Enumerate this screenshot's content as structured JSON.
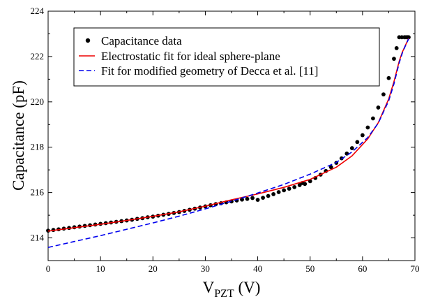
{
  "chart_data": {
    "type": "scatter",
    "xlabel": {
      "main": "V",
      "sub": "PZT",
      "unit": " (V)"
    },
    "ylabel": "Capacitance (pF)",
    "xlim": [
      0,
      70
    ],
    "ylim": [
      213,
      224
    ],
    "xticks": [
      0,
      10,
      20,
      30,
      40,
      50,
      60,
      70
    ],
    "yticks": [
      214,
      216,
      218,
      220,
      222,
      224
    ],
    "grid": false,
    "legend_position": "top-left",
    "series": [
      {
        "name": "Capacitance data",
        "kind": "points",
        "color": "#000000",
        "x": [
          0,
          1,
          2,
          3,
          4,
          5,
          6,
          7,
          8,
          9,
          10,
          11,
          12,
          13,
          14,
          15,
          16,
          17,
          18,
          19,
          20,
          21,
          22,
          23,
          24,
          25,
          26,
          27,
          28,
          29,
          30,
          31,
          32,
          33,
          34,
          35,
          36,
          37,
          38,
          39,
          40,
          41,
          42,
          43,
          44,
          45,
          46,
          47,
          48,
          48.5,
          49,
          50,
          51,
          52,
          53,
          54,
          55,
          56,
          57,
          58,
          59,
          60,
          61,
          62,
          63,
          64,
          65,
          66,
          66.5,
          67,
          67.5,
          68,
          68.3,
          68.6,
          68.8
        ],
        "y": [
          214.32,
          214.35,
          214.38,
          214.41,
          214.44,
          214.47,
          214.5,
          214.53,
          214.56,
          214.59,
          214.62,
          214.65,
          214.68,
          214.71,
          214.74,
          214.77,
          214.8,
          214.84,
          214.87,
          214.91,
          214.94,
          214.98,
          215.02,
          215.06,
          215.1,
          215.14,
          215.19,
          215.24,
          215.29,
          215.34,
          215.39,
          215.44,
          215.49,
          215.53,
          215.57,
          215.61,
          215.65,
          215.69,
          215.72,
          215.76,
          215.68,
          215.77,
          215.85,
          215.93,
          216.02,
          216.1,
          216.17,
          216.24,
          216.33,
          216.42,
          216.38,
          216.5,
          216.64,
          216.79,
          216.95,
          217.12,
          217.31,
          217.51,
          217.72,
          217.96,
          218.23,
          218.53,
          218.87,
          219.27,
          219.75,
          220.33,
          221.05,
          221.9,
          222.37,
          222.85,
          222.85,
          222.85,
          222.85,
          222.85,
          222.85
        ]
      },
      {
        "name": "Electrostatic fit for ideal sphere-plane",
        "kind": "line",
        "color": "#ee0000",
        "dash": "solid",
        "x": [
          0,
          5,
          10,
          15,
          20,
          25,
          30,
          35,
          40,
          45,
          50,
          55,
          58,
          61,
          63,
          65,
          66,
          67,
          67.6,
          68.1,
          68.5,
          68.8
        ],
        "y": [
          214.3,
          214.45,
          214.6,
          214.77,
          214.95,
          215.15,
          215.4,
          215.68,
          215.94,
          216.23,
          216.58,
          217.12,
          217.62,
          218.37,
          219.08,
          220.13,
          220.89,
          221.8,
          222.2,
          222.45,
          222.65,
          222.8
        ]
      },
      {
        "name": "Fit for modified geometry of Decca et al. [11]",
        "kind": "line",
        "color": "#0000ee",
        "dash": "dashed",
        "x": [
          0,
          5,
          10,
          15,
          20,
          25,
          30,
          35,
          40,
          45,
          50,
          55,
          58,
          61,
          63,
          65,
          66,
          67,
          67.6,
          68.1,
          68.5,
          68.8
        ],
        "y": [
          213.58,
          213.84,
          214.1,
          214.38,
          214.66,
          214.96,
          215.28,
          215.62,
          215.98,
          216.36,
          216.81,
          217.33,
          217.79,
          218.43,
          219.06,
          220.05,
          220.79,
          221.73,
          222.16,
          222.43,
          222.63,
          222.78
        ]
      }
    ]
  }
}
